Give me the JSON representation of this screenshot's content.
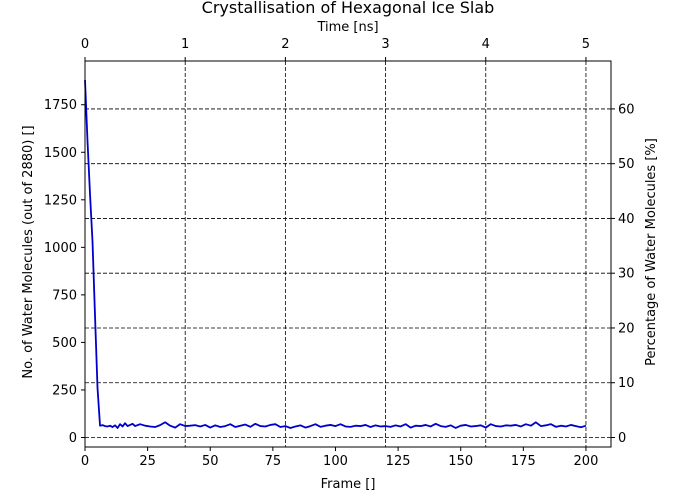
{
  "chart_data": {
    "type": "line",
    "title": "Crystallisation of Hexagonal Ice Slab",
    "xlabel": "Frame []",
    "ylabel": "No. of Water Molecules (out of 2880) []",
    "x2label": "Time [ns]",
    "y2label": "Percentage of Water Molecules [%]",
    "xlim": [
      0,
      210
    ],
    "ylim": [
      -50,
      1980
    ],
    "x2lim": [
      0,
      5.25
    ],
    "y2lim": [
      -1.736,
      68.75
    ],
    "xticks": [
      0,
      25,
      50,
      75,
      100,
      125,
      150,
      175,
      200
    ],
    "yticks": [
      0,
      250,
      500,
      750,
      1000,
      1250,
      1500,
      1750
    ],
    "x2ticks": [
      0,
      1,
      2,
      3,
      4,
      5
    ],
    "y2ticks": [
      0,
      10,
      20,
      30,
      40,
      50,
      60
    ],
    "grid": true,
    "line_color": "#0000cc",
    "series": [
      {
        "name": "",
        "x": [
          0,
          1,
          2,
          3,
          4,
          5,
          6,
          7,
          8,
          9,
          10,
          11,
          12,
          13,
          14,
          15,
          16,
          17,
          18,
          19,
          20,
          22,
          24,
          26,
          28,
          30,
          32,
          34,
          36,
          38,
          40,
          42,
          44,
          46,
          48,
          50,
          52,
          54,
          56,
          58,
          60,
          62,
          64,
          66,
          68,
          70,
          72,
          74,
          76,
          78,
          80,
          82,
          84,
          86,
          88,
          90,
          92,
          94,
          96,
          98,
          100,
          102,
          104,
          106,
          108,
          110,
          112,
          114,
          116,
          118,
          120,
          122,
          124,
          126,
          128,
          130,
          132,
          134,
          136,
          138,
          140,
          142,
          144,
          146,
          148,
          150,
          152,
          154,
          156,
          158,
          160,
          162,
          164,
          166,
          168,
          170,
          172,
          174,
          176,
          178,
          180,
          182,
          184,
          186,
          188,
          190,
          192,
          194,
          196,
          198,
          200
        ],
        "values": [
          1880,
          1560,
          1280,
          1030,
          640,
          260,
          62,
          65,
          60,
          58,
          62,
          55,
          64,
          50,
          70,
          58,
          75,
          60,
          66,
          72,
          60,
          70,
          62,
          58,
          55,
          65,
          80,
          62,
          52,
          70,
          60,
          62,
          65,
          58,
          66,
          52,
          64,
          55,
          60,
          70,
          55,
          62,
          68,
          56,
          72,
          60,
          58,
          66,
          70,
          55,
          60,
          50,
          58,
          64,
          52,
          60,
          70,
          56,
          62,
          66,
          60,
          70,
          58,
          56,
          62,
          60,
          66,
          55,
          64,
          58,
          60,
          56,
          64,
          58,
          70,
          52,
          62,
          60,
          66,
          58,
          72,
          60,
          56,
          64,
          50,
          62,
          66,
          58,
          60,
          64,
          52,
          70,
          60,
          58,
          64,
          62,
          66,
          58,
          70,
          62,
          80,
          60,
          64,
          70,
          56,
          62,
          58,
          66,
          60,
          54,
          62
        ]
      }
    ]
  }
}
